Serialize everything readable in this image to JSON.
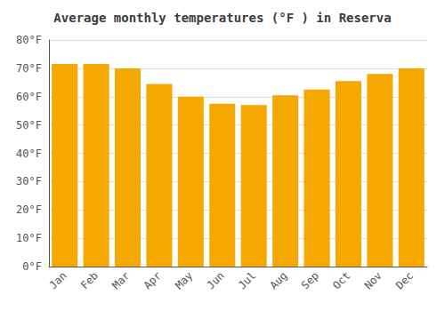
{
  "chart_data": {
    "type": "bar",
    "title": "Average monthly temperatures (°F ) in Reserva",
    "categories": [
      "Jan",
      "Feb",
      "Mar",
      "Apr",
      "May",
      "Jun",
      "Jul",
      "Aug",
      "Sep",
      "Oct",
      "Nov",
      "Dec"
    ],
    "values": [
      71.5,
      71.5,
      70.0,
      64.5,
      60.0,
      57.5,
      57.0,
      60.5,
      62.5,
      65.5,
      68.0,
      70.0
    ],
    "color": "#F5A800",
    "ylim": [
      0,
      80
    ],
    "yticks": [
      {
        "value": 0,
        "label": "0°F"
      },
      {
        "value": 10,
        "label": "10°F"
      },
      {
        "value": 20,
        "label": "20°F"
      },
      {
        "value": 30,
        "label": "30°F"
      },
      {
        "value": 40,
        "label": "40°F"
      },
      {
        "value": 50,
        "label": "50°F"
      },
      {
        "value": 60,
        "label": "60°F"
      },
      {
        "value": 70,
        "label": "70°F"
      },
      {
        "value": 80,
        "label": "80°F"
      }
    ],
    "grid": true
  }
}
